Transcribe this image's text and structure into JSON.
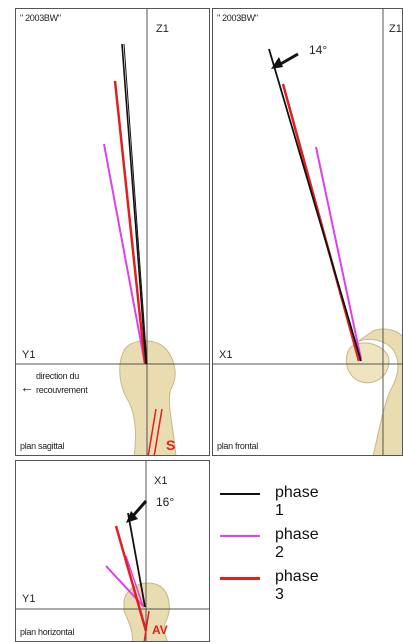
{
  "panels": {
    "sagittal": {
      "header": "\" 2003BW\"",
      "axis_z": "Z1",
      "axis_y": "Y1",
      "arrow_symbol": "←",
      "direction_line1": "direction du",
      "direction_line2": "recouvrement",
      "plane": "plan sagittal",
      "bone_marker": "S"
    },
    "frontal": {
      "header": "\" 2003BW\"",
      "axis_z": "Z1",
      "axis_x": "X1",
      "angle": "14°",
      "plane": "plan frontal"
    },
    "horizontal": {
      "axis_x": "X1",
      "axis_y": "Y1",
      "angle": "16°",
      "plane": "plan horizontal",
      "bone_marker": "AV"
    }
  },
  "legend": [
    {
      "label": "phase 1",
      "color": "#111111"
    },
    {
      "label": "phase 2",
      "color": "#e040e8"
    },
    {
      "label": "phase 3",
      "color": "#e02020"
    }
  ]
}
